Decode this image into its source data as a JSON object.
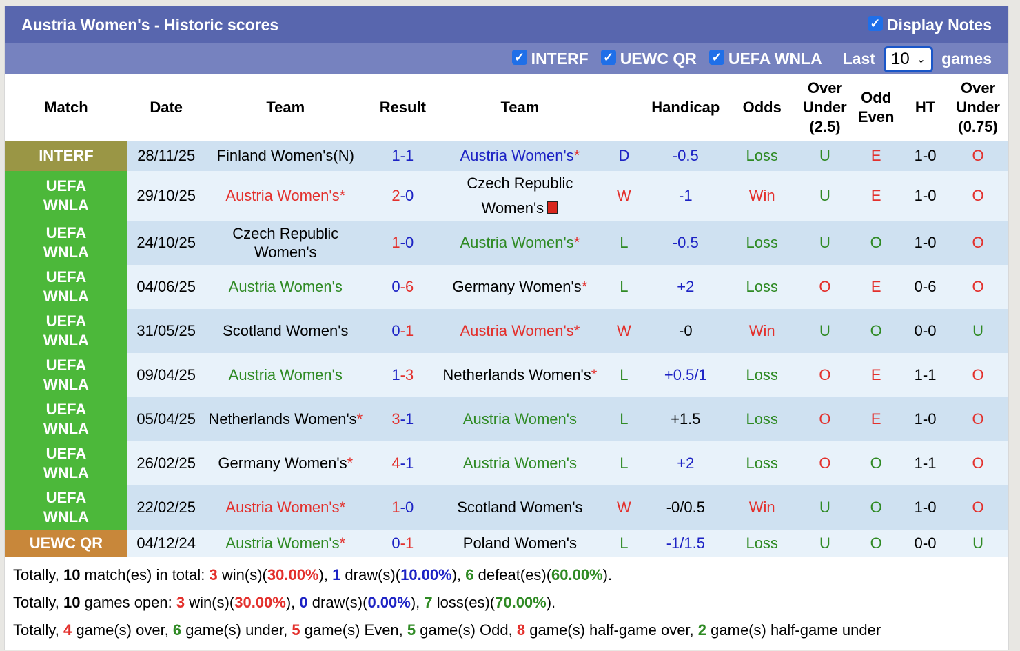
{
  "header": {
    "title": "Austria Women's - Historic scores",
    "display_notes": "Display Notes"
  },
  "filters": {
    "items": [
      "INTERF",
      "UEWC QR",
      "UEFA WNLA"
    ],
    "last_label": "Last",
    "last_value": "10",
    "games_label": "games"
  },
  "columns": [
    "Match",
    "Date",
    "Team",
    "Result",
    "Team",
    "",
    "Handicap",
    "Odds",
    "Over Under (2.5)",
    "Odd Even",
    "HT",
    "Over Under (0.75)"
  ],
  "colors": {
    "INTERF": "#9a9645",
    "UEFA WNLA": "#4cb83a",
    "UEWC QR": "#c8873a",
    "red": "#e3302c",
    "green": "#2f8a24",
    "blue": "#1c22c4"
  },
  "rows": [
    {
      "comp": "INTERF",
      "date": "28/11/25",
      "home": "Finland Women's(N)",
      "hc": "k",
      "hs": "1",
      "hsc": "bl",
      "as": "1",
      "asc": "bl",
      "away": "Austria Women's*",
      "ac": "bl",
      "res": "D",
      "resc": "bl",
      "hcp": "-0.5",
      "hcpc": "bl",
      "odds": "Loss",
      "oddsc": "g",
      "ou": "U",
      "ouc": "g",
      "oe": "E",
      "oec": "r",
      "ht": "1-0",
      "ou2": "O",
      "ou2c": "r"
    },
    {
      "comp": "UEFA WNLA",
      "date": "29/10/25",
      "home": "Austria Women's*",
      "hc": "r",
      "hs": "2",
      "hsc": "r",
      "as": "0",
      "asc": "bl",
      "away": "Czech Republic Women's",
      "ac": "k",
      "card": true,
      "res": "W",
      "resc": "r",
      "hcp": "-1",
      "hcpc": "bl",
      "odds": "Win",
      "oddsc": "r",
      "ou": "U",
      "ouc": "g",
      "oe": "E",
      "oec": "r",
      "ht": "1-0",
      "ou2": "O",
      "ou2c": "r"
    },
    {
      "comp": "UEFA WNLA",
      "date": "24/10/25",
      "home": "Czech Republic Women's",
      "hc": "k",
      "hs": "1",
      "hsc": "r",
      "as": "0",
      "asc": "bl",
      "away": "Austria Women's*",
      "ac": "g",
      "res": "L",
      "resc": "g",
      "hcp": "-0.5",
      "hcpc": "bl",
      "odds": "Loss",
      "oddsc": "g",
      "ou": "U",
      "ouc": "g",
      "oe": "O",
      "oec": "g",
      "ht": "1-0",
      "ou2": "O",
      "ou2c": "r"
    },
    {
      "comp": "UEFA WNLA",
      "date": "04/06/25",
      "home": "Austria Women's",
      "hc": "g",
      "hs": "0",
      "hsc": "bl",
      "as": "6",
      "asc": "r",
      "away": "Germany Women's*",
      "ac": "k",
      "res": "L",
      "resc": "g",
      "hcp": "+2",
      "hcpc": "bl",
      "odds": "Loss",
      "oddsc": "g",
      "ou": "O",
      "ouc": "r",
      "oe": "E",
      "oec": "r",
      "ht": "0-6",
      "ou2": "O",
      "ou2c": "r"
    },
    {
      "comp": "UEFA WNLA",
      "date": "31/05/25",
      "home": "Scotland Women's",
      "hc": "k",
      "hs": "0",
      "hsc": "bl",
      "as": "1",
      "asc": "r",
      "away": "Austria Women's*",
      "ac": "r",
      "res": "W",
      "resc": "r",
      "hcp": "-0",
      "hcpc": "k",
      "odds": "Win",
      "oddsc": "r",
      "ou": "U",
      "ouc": "g",
      "oe": "O",
      "oec": "g",
      "ht": "0-0",
      "ou2": "U",
      "ou2c": "g"
    },
    {
      "comp": "UEFA WNLA",
      "date": "09/04/25",
      "home": "Austria Women's",
      "hc": "g",
      "hs": "1",
      "hsc": "bl",
      "as": "3",
      "asc": "r",
      "away": "Netherlands Women's*",
      "ac": "k",
      "res": "L",
      "resc": "g",
      "hcp": "+0.5/1",
      "hcpc": "bl",
      "odds": "Loss",
      "oddsc": "g",
      "ou": "O",
      "ouc": "r",
      "oe": "E",
      "oec": "r",
      "ht": "1-1",
      "ou2": "O",
      "ou2c": "r"
    },
    {
      "comp": "UEFA WNLA",
      "date": "05/04/25",
      "home": "Netherlands Women's*",
      "hc": "k",
      "hs": "3",
      "hsc": "r",
      "as": "1",
      "asc": "bl",
      "away": "Austria Women's",
      "ac": "g",
      "res": "L",
      "resc": "g",
      "hcp": "+1.5",
      "hcpc": "k",
      "odds": "Loss",
      "oddsc": "g",
      "ou": "O",
      "ouc": "r",
      "oe": "E",
      "oec": "r",
      "ht": "1-0",
      "ou2": "O",
      "ou2c": "r"
    },
    {
      "comp": "UEFA WNLA",
      "date": "26/02/25",
      "home": "Germany Women's*",
      "hc": "k",
      "hs": "4",
      "hsc": "r",
      "as": "1",
      "asc": "bl",
      "away": "Austria Women's",
      "ac": "g",
      "res": "L",
      "resc": "g",
      "hcp": "+2",
      "hcpc": "bl",
      "odds": "Loss",
      "oddsc": "g",
      "ou": "O",
      "ouc": "r",
      "oe": "O",
      "oec": "g",
      "ht": "1-1",
      "ou2": "O",
      "ou2c": "r"
    },
    {
      "comp": "UEFA WNLA",
      "date": "22/02/25",
      "home": "Austria Women's*",
      "hc": "r",
      "hs": "1",
      "hsc": "r",
      "as": "0",
      "asc": "bl",
      "away": "Scotland Women's",
      "ac": "k",
      "res": "W",
      "resc": "r",
      "hcp": "-0/0.5",
      "hcpc": "k",
      "odds": "Win",
      "oddsc": "r",
      "ou": "U",
      "ouc": "g",
      "oe": "O",
      "oec": "g",
      "ht": "1-0",
      "ou2": "O",
      "ou2c": "r"
    },
    {
      "comp": "UEWC QR",
      "date": "04/12/24",
      "home": "Austria Women's*",
      "hc": "g",
      "hs": "0",
      "hsc": "bl",
      "as": "1",
      "asc": "r",
      "away": "Poland Women's",
      "ac": "k",
      "res": "L",
      "resc": "g",
      "hcp": "-1/1.5",
      "hcpc": "bl",
      "odds": "Loss",
      "oddsc": "g",
      "ou": "U",
      "ouc": "g",
      "oe": "O",
      "oec": "g",
      "ht": "0-0",
      "ou2": "U",
      "ou2c": "g"
    }
  ],
  "summary": [
    [
      [
        "Totally, ",
        "k"
      ],
      [
        "10",
        "kb"
      ],
      [
        " match(es) in total: ",
        "k"
      ],
      [
        "3",
        "r"
      ],
      [
        " win(s)(",
        "k"
      ],
      [
        "30.00%",
        "rb"
      ],
      [
        "), ",
        "k"
      ],
      [
        "1",
        "bl"
      ],
      [
        " draw(s)(",
        "k"
      ],
      [
        "10.00%",
        "blb"
      ],
      [
        "), ",
        "k"
      ],
      [
        "6",
        "g"
      ],
      [
        " defeat(es)(",
        "k"
      ],
      [
        "60.00%",
        "gb"
      ],
      [
        ").",
        "k"
      ]
    ],
    [
      [
        "Totally, ",
        "k"
      ],
      [
        "10",
        "kb"
      ],
      [
        " games open: ",
        "k"
      ],
      [
        "3",
        "r"
      ],
      [
        " win(s)(",
        "k"
      ],
      [
        "30.00%",
        "rb"
      ],
      [
        "), ",
        "k"
      ],
      [
        "0",
        "bl"
      ],
      [
        " draw(s)(",
        "k"
      ],
      [
        "0.00%",
        "blb"
      ],
      [
        "), ",
        "k"
      ],
      [
        "7",
        "g"
      ],
      [
        " loss(es)(",
        "k"
      ],
      [
        "70.00%",
        "gb"
      ],
      [
        ").",
        "k"
      ]
    ],
    [
      [
        "Totally, ",
        "k"
      ],
      [
        "4",
        "r"
      ],
      [
        " game(s) over, ",
        "k"
      ],
      [
        "6",
        "g"
      ],
      [
        " game(s) under, ",
        "k"
      ],
      [
        "5",
        "r"
      ],
      [
        " game(s) Even, ",
        "k"
      ],
      [
        "5",
        "g"
      ],
      [
        " game(s) Odd, ",
        "k"
      ],
      [
        "8",
        "r"
      ],
      [
        " game(s) half-game over, ",
        "k"
      ],
      [
        "2",
        "g"
      ],
      [
        " game(s) half-game under",
        "k"
      ]
    ]
  ]
}
